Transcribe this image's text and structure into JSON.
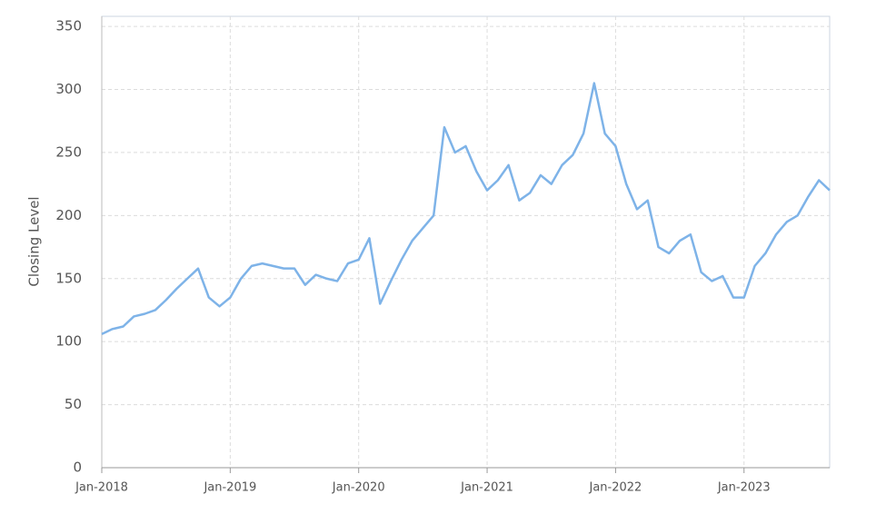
{
  "chart_data": {
    "type": "line",
    "y_label": "Closing Level",
    "x": [
      "2018-01",
      "2018-02",
      "2018-03",
      "2018-04",
      "2018-05",
      "2018-06",
      "2018-07",
      "2018-08",
      "2018-09",
      "2018-10",
      "2018-11",
      "2018-12",
      "2019-01",
      "2019-02",
      "2019-03",
      "2019-04",
      "2019-05",
      "2019-06",
      "2019-07",
      "2019-08",
      "2019-09",
      "2019-10",
      "2019-11",
      "2019-12",
      "2020-01",
      "2020-02",
      "2020-03",
      "2020-04",
      "2020-05",
      "2020-06",
      "2020-07",
      "2020-08",
      "2020-09",
      "2020-10",
      "2020-11",
      "2020-12",
      "2021-01",
      "2021-02",
      "2021-03",
      "2021-04",
      "2021-05",
      "2021-06",
      "2021-07",
      "2021-08",
      "2021-09",
      "2021-10",
      "2021-11",
      "2021-12",
      "2022-01",
      "2022-02",
      "2022-03",
      "2022-04",
      "2022-05",
      "2022-06",
      "2022-07",
      "2022-08",
      "2022-09",
      "2022-10",
      "2022-11",
      "2022-12",
      "2023-01",
      "2023-02",
      "2023-03",
      "2023-04",
      "2023-05",
      "2023-06",
      "2023-07",
      "2023-08",
      "2023-09"
    ],
    "series": [
      {
        "name": "Closing Level",
        "color": "#7eb3e8",
        "values": [
          106,
          110,
          112,
          120,
          122,
          125,
          133,
          142,
          150,
          158,
          135,
          128,
          135,
          150,
          160,
          162,
          160,
          158,
          158,
          145,
          153,
          150,
          148,
          162,
          165,
          182,
          130,
          148,
          165,
          180,
          190,
          200,
          270,
          250,
          255,
          235,
          220,
          228,
          240,
          212,
          218,
          232,
          225,
          240,
          248,
          265,
          305,
          265,
          255,
          225,
          205,
          212,
          175,
          170,
          180,
          185,
          155,
          148,
          152,
          135,
          135,
          160,
          170,
          185,
          195,
          200,
          215,
          228,
          220
        ]
      }
    ],
    "xlim": [
      "2018-01",
      "2023-09"
    ],
    "xticks": [
      {
        "value": "2018-01",
        "label": "Jan-2018"
      },
      {
        "value": "2019-01",
        "label": "Jan-2019"
      },
      {
        "value": "2020-01",
        "label": "Jan-2020"
      },
      {
        "value": "2021-01",
        "label": "Jan-2021"
      },
      {
        "value": "2022-01",
        "label": "Jan-2022"
      },
      {
        "value": "2023-01",
        "label": "Jan-2023"
      }
    ],
    "ylim": [
      0,
      358
    ],
    "yticks": [
      0,
      50,
      100,
      150,
      200,
      250,
      300,
      350
    ],
    "grid": true
  }
}
